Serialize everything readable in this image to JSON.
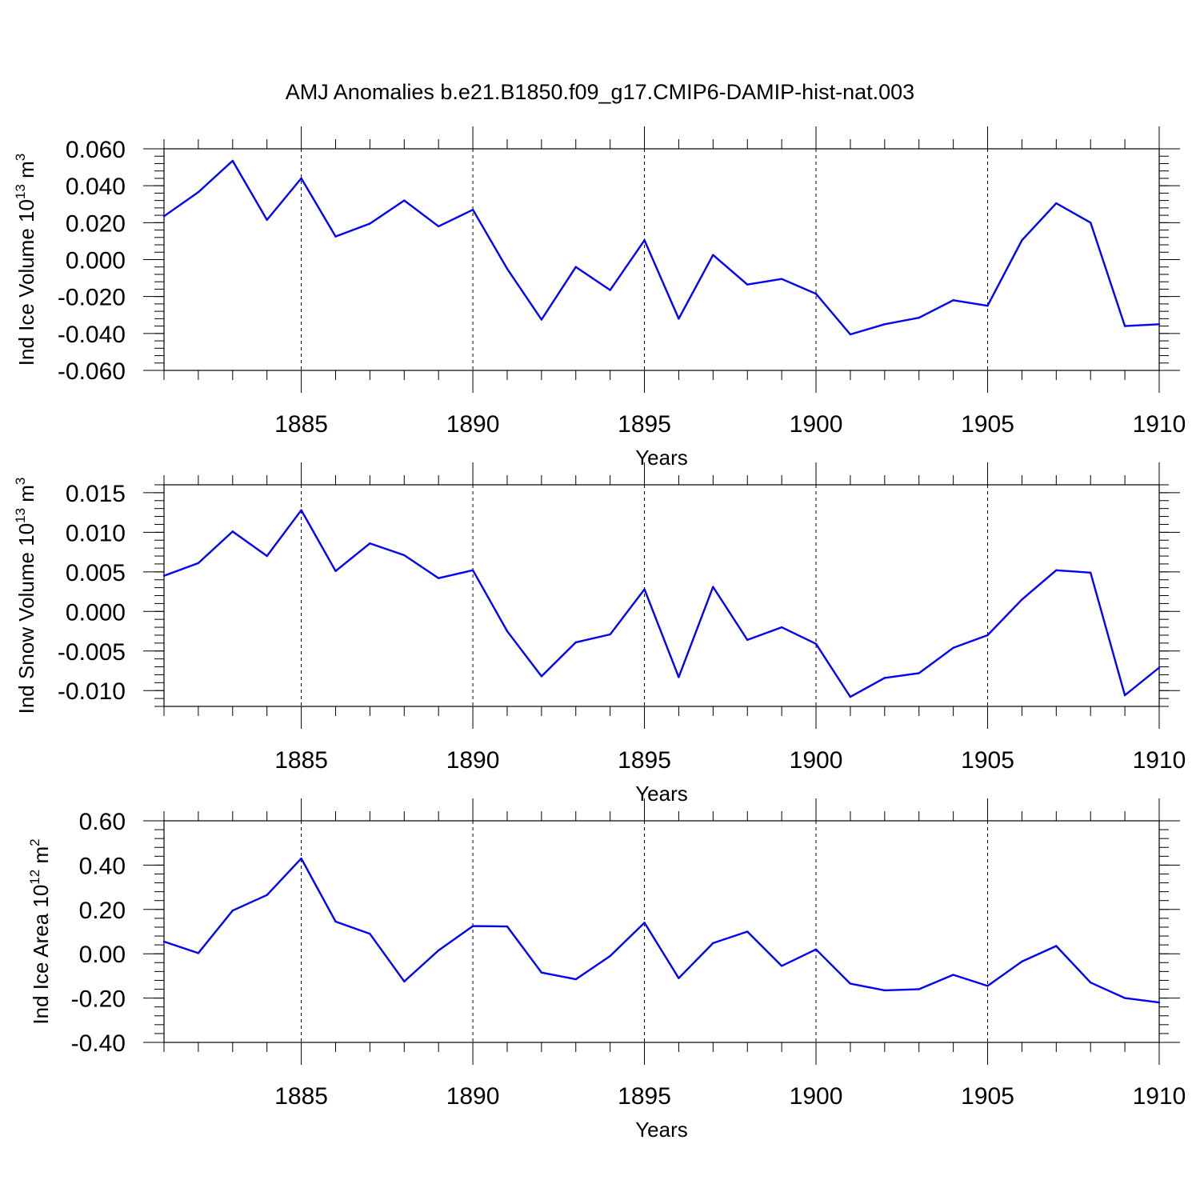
{
  "figure": {
    "title": "AMJ Anomalies b.e21.B1850.f09_g17.CMIP6-DAMIP-hist-nat.003",
    "line_color": "#0000ff"
  },
  "chart_data": [
    {
      "type": "line",
      "xlabel": "Years",
      "ylabel": {
        "text": "Ind Ice Volume 10",
        "sup": "13",
        "tail": " m",
        "tail_sup": "3"
      },
      "xlim": [
        1881,
        1910
      ],
      "ylim": [
        -0.06,
        0.06
      ],
      "yticks": [
        "0.060",
        "0.040",
        "0.020",
        "0.000",
        "-0.020",
        "-0.040",
        "-0.060"
      ],
      "ytick_values": [
        0.06,
        0.04,
        0.02,
        0.0,
        -0.02,
        -0.04,
        -0.06
      ],
      "xticks": [
        "1885",
        "1890",
        "1895",
        "1900",
        "1905",
        "1910"
      ],
      "xtick_values": [
        1885,
        1890,
        1895,
        1900,
        1905,
        1910
      ],
      "grid": "vertical dashed at major x ticks",
      "x": [
        1881,
        1882,
        1883,
        1884,
        1885,
        1886,
        1887,
        1888,
        1889,
        1890,
        1891,
        1892,
        1893,
        1894,
        1895,
        1896,
        1897,
        1898,
        1899,
        1900,
        1901,
        1902,
        1903,
        1904,
        1905,
        1906,
        1907,
        1908,
        1909,
        1910
      ],
      "values": [
        0.0235,
        0.0365,
        0.0535,
        0.0215,
        0.044,
        0.0125,
        0.0195,
        0.032,
        0.018,
        0.027,
        -0.005,
        -0.0325,
        -0.004,
        -0.0165,
        0.0105,
        -0.032,
        0.0025,
        -0.0135,
        -0.0105,
        -0.0185,
        -0.0405,
        -0.035,
        -0.0315,
        -0.022,
        -0.025,
        0.0105,
        0.0305,
        0.02,
        -0.036,
        -0.035
      ]
    },
    {
      "type": "line",
      "xlabel": "Years",
      "ylabel": {
        "text": "Ind Snow Volume 10",
        "sup": "13",
        "tail": " m",
        "tail_sup": "3"
      },
      "xlim": [
        1881,
        1910
      ],
      "ylim": [
        -0.012,
        0.016
      ],
      "yticks": [
        "0.015",
        "0.010",
        "0.005",
        "0.000",
        "-0.005",
        "-0.010"
      ],
      "ytick_values": [
        0.015,
        0.01,
        0.005,
        0.0,
        -0.005,
        -0.01
      ],
      "xticks": [
        "1885",
        "1890",
        "1895",
        "1900",
        "1905",
        "1910"
      ],
      "xtick_values": [
        1885,
        1890,
        1895,
        1900,
        1905,
        1910
      ],
      "grid": "vertical dashed at major x ticks",
      "x": [
        1881,
        1882,
        1883,
        1884,
        1885,
        1886,
        1887,
        1888,
        1889,
        1890,
        1891,
        1892,
        1893,
        1894,
        1895,
        1896,
        1897,
        1898,
        1899,
        1900,
        1901,
        1902,
        1903,
        1904,
        1905,
        1906,
        1907,
        1908,
        1909,
        1910
      ],
      "values": [
        0.0045,
        0.0061,
        0.0101,
        0.007,
        0.0128,
        0.0051,
        0.0086,
        0.0071,
        0.0042,
        0.0052,
        -0.0025,
        -0.0082,
        -0.0039,
        -0.0029,
        0.0028,
        -0.0083,
        0.0031,
        -0.0036,
        -0.002,
        -0.0041,
        -0.0108,
        -0.0084,
        -0.0078,
        -0.0046,
        -0.003,
        0.0015,
        0.0052,
        0.0049,
        -0.0106,
        -0.0071
      ]
    },
    {
      "type": "line",
      "xlabel": "Years",
      "ylabel": {
        "text": "Ind Ice Area 10",
        "sup": "12",
        "tail": " m",
        "tail_sup": "2"
      },
      "xlim": [
        1881,
        1910
      ],
      "ylim": [
        -0.4,
        0.6
      ],
      "yticks": [
        "0.60",
        "0.40",
        "0.20",
        "0.00",
        "-0.20",
        "-0.40"
      ],
      "ytick_values": [
        0.6,
        0.4,
        0.2,
        0.0,
        -0.2,
        -0.4
      ],
      "xticks": [
        "1885",
        "1890",
        "1895",
        "1900",
        "1905",
        "1910"
      ],
      "xtick_values": [
        1885,
        1890,
        1895,
        1900,
        1905,
        1910
      ],
      "grid": "vertical dashed at major x ticks",
      "x": [
        1881,
        1882,
        1883,
        1884,
        1885,
        1886,
        1887,
        1888,
        1889,
        1890,
        1891,
        1892,
        1893,
        1894,
        1895,
        1896,
        1897,
        1898,
        1899,
        1900,
        1901,
        1902,
        1903,
        1904,
        1905,
        1906,
        1907,
        1908,
        1909,
        1910
      ],
      "values": [
        0.055,
        0.003,
        0.195,
        0.265,
        0.43,
        0.145,
        0.09,
        -0.125,
        0.015,
        0.125,
        0.123,
        -0.085,
        -0.115,
        -0.01,
        0.14,
        -0.11,
        0.048,
        0.1,
        -0.055,
        0.02,
        -0.135,
        -0.165,
        -0.16,
        -0.095,
        -0.145,
        -0.035,
        0.035,
        -0.13,
        -0.2,
        -0.22
      ]
    }
  ]
}
